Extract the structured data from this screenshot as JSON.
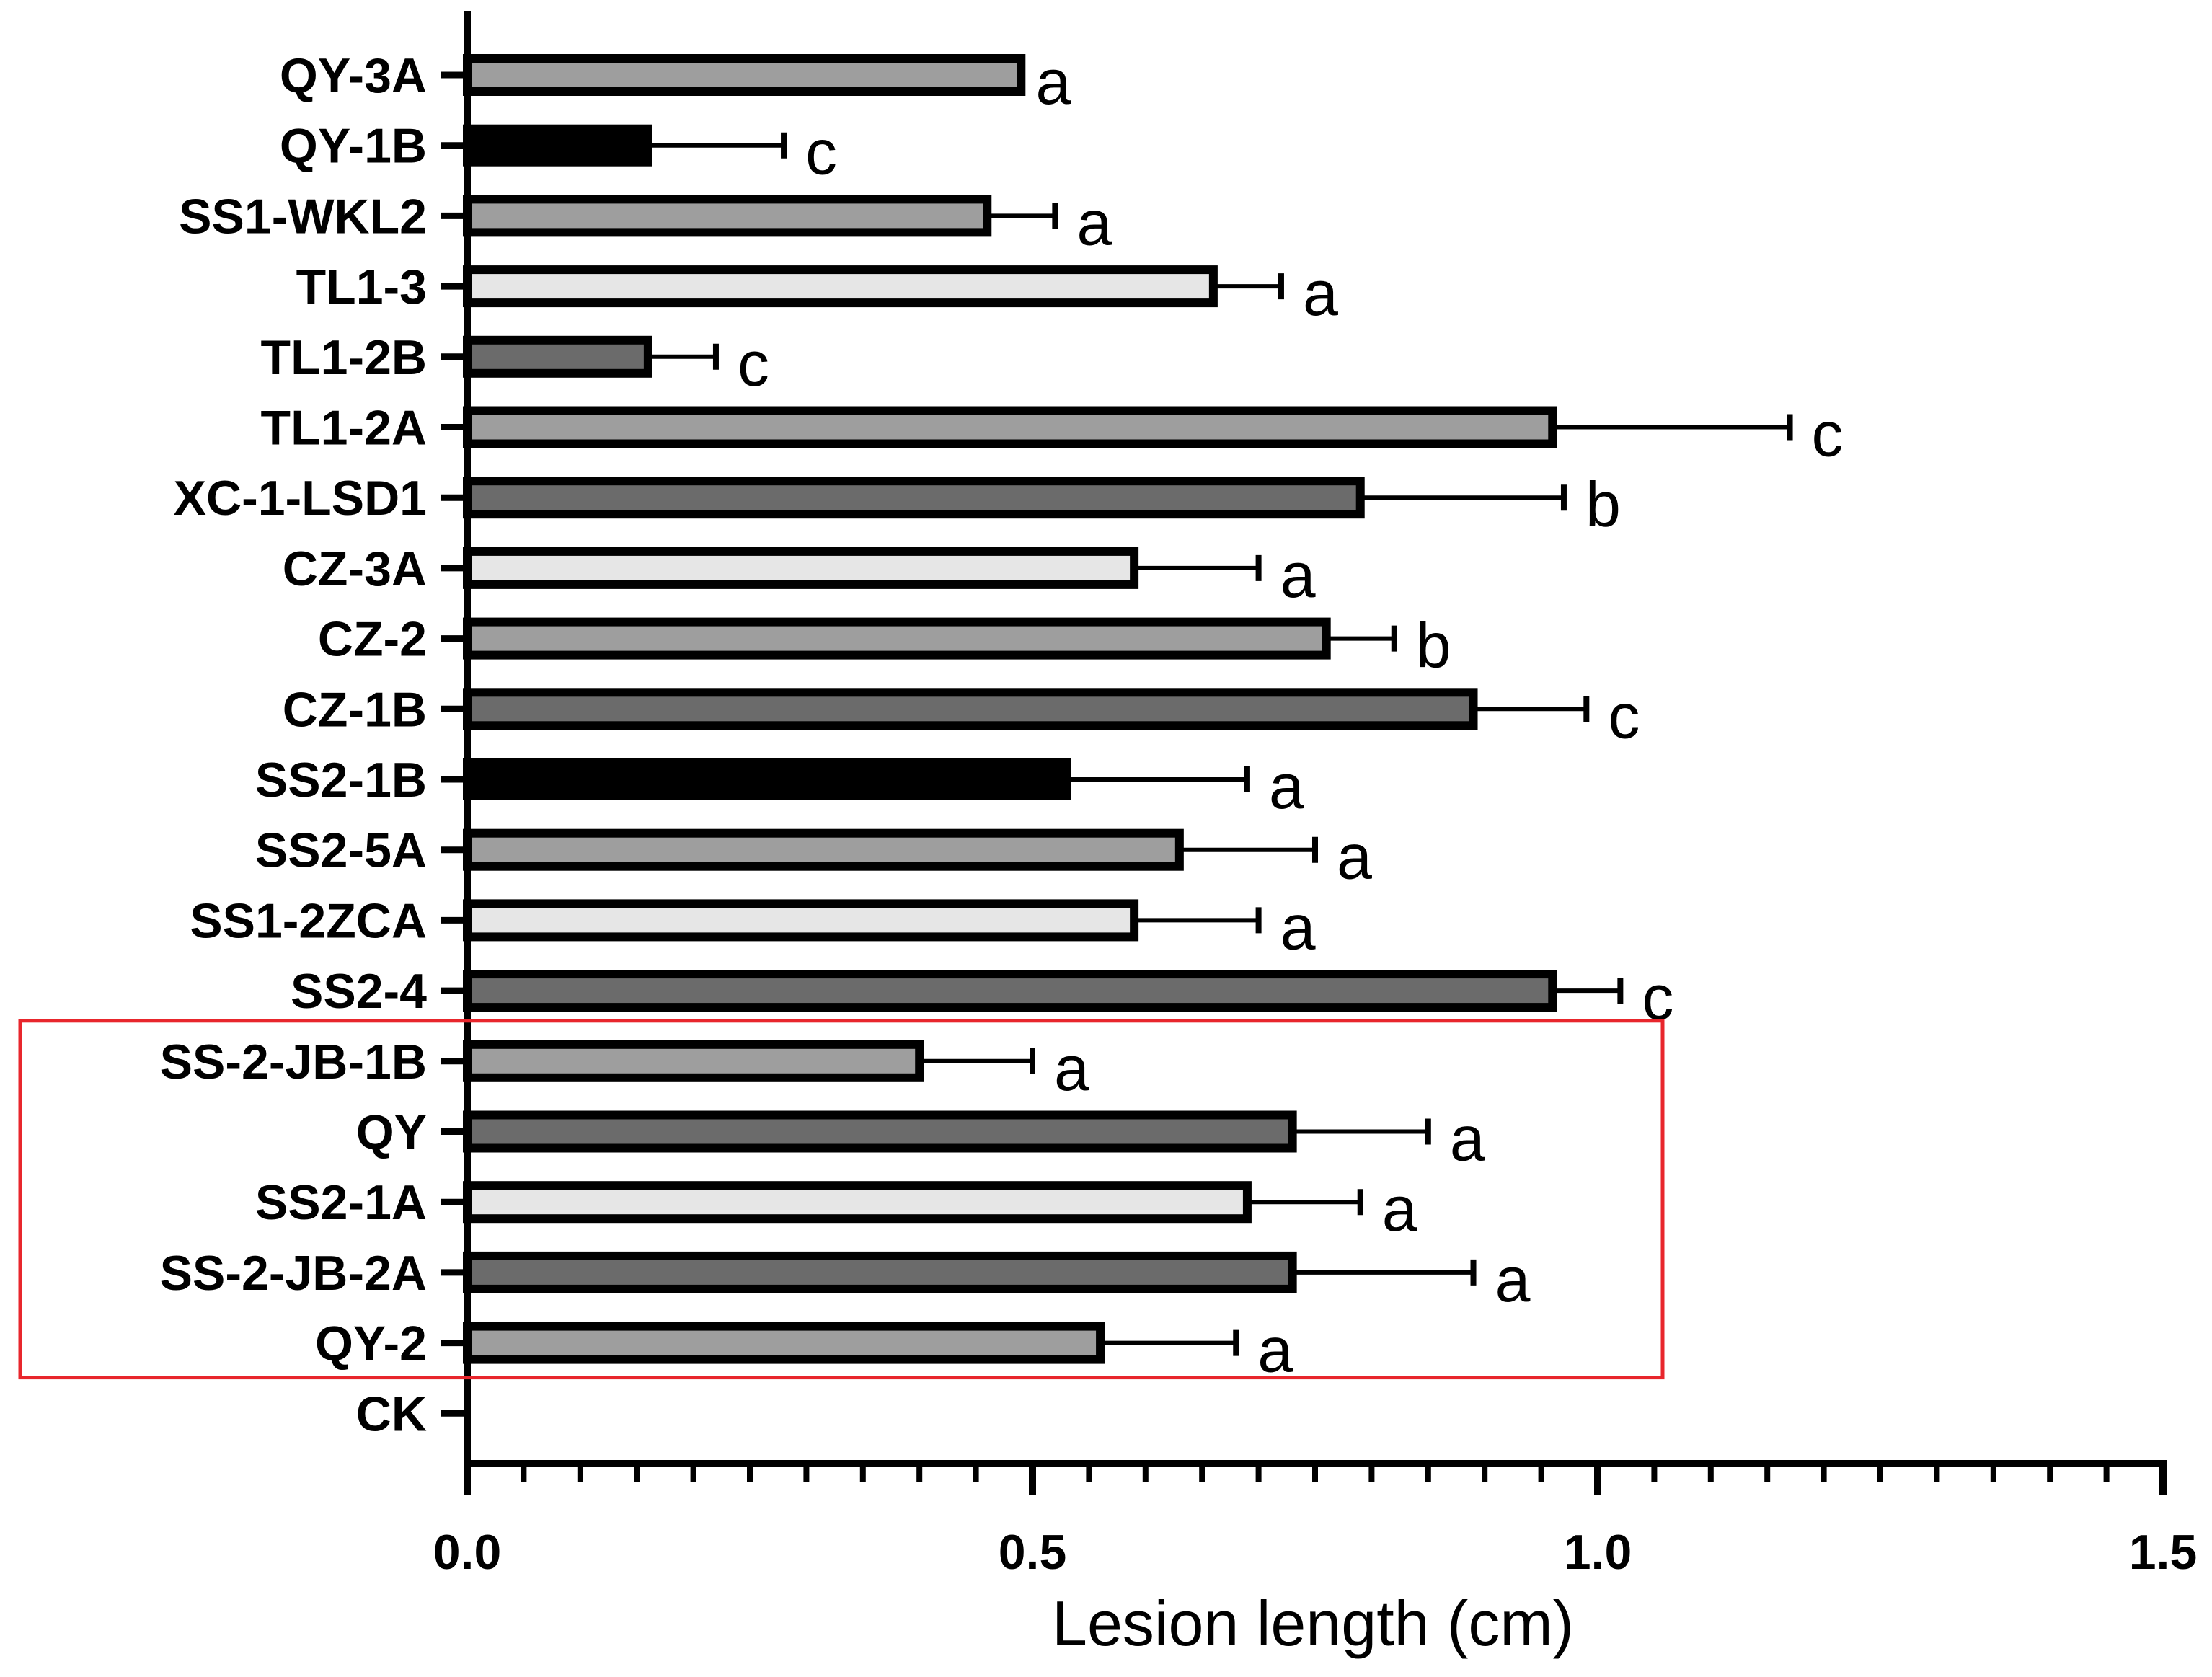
{
  "chart_data": {
    "type": "bar",
    "orientation": "horizontal",
    "title": "",
    "xlabel": "Lesion length (cm)",
    "ylabel": "",
    "xlim": [
      0,
      1.5
    ],
    "xticks": [
      0.0,
      0.5,
      1.0,
      1.5
    ],
    "xtick_labels": [
      "0.0",
      "0.5",
      "1.0",
      "1.5"
    ],
    "minor_tick_step": 0.05,
    "grid": false,
    "highlight_box": {
      "color": "#e8262c",
      "categories": [
        "SS-2-JB-1B",
        "QY",
        "SS2-1A",
        "SS-2-JB-2A",
        "QY-2"
      ]
    },
    "bars": [
      {
        "category": "QY-3A",
        "value": 0.49,
        "error": 0.0,
        "sig": "a",
        "color": "#9e9e9e"
      },
      {
        "category": "QY-1B",
        "value": 0.16,
        "error": 0.12,
        "sig": "c",
        "color": "#000000"
      },
      {
        "category": "SS1-WKL2",
        "value": 0.46,
        "error": 0.06,
        "sig": "a",
        "color": "#9e9e9e"
      },
      {
        "category": "TL1-3",
        "value": 0.66,
        "error": 0.06,
        "sig": "a",
        "color": "#e6e6e6"
      },
      {
        "category": "TL1-2B",
        "value": 0.16,
        "error": 0.06,
        "sig": "c",
        "color": "#6b6b6b"
      },
      {
        "category": "TL1-2A",
        "value": 0.96,
        "error": 0.21,
        "sig": "c",
        "color": "#9e9e9e"
      },
      {
        "category": "XC-1-LSD1",
        "value": 0.79,
        "error": 0.18,
        "sig": "b",
        "color": "#6b6b6b"
      },
      {
        "category": "CZ-3A",
        "value": 0.59,
        "error": 0.11,
        "sig": "a",
        "color": "#e6e6e6"
      },
      {
        "category": "CZ-2",
        "value": 0.76,
        "error": 0.06,
        "sig": "b",
        "color": "#9e9e9e"
      },
      {
        "category": "CZ-1B",
        "value": 0.89,
        "error": 0.1,
        "sig": "c",
        "color": "#6b6b6b"
      },
      {
        "category": "SS2-1B",
        "value": 0.53,
        "error": 0.16,
        "sig": "a",
        "color": "#000000"
      },
      {
        "category": "SS2-5A",
        "value": 0.63,
        "error": 0.12,
        "sig": "a",
        "color": "#9e9e9e"
      },
      {
        "category": "SS1-2ZCA",
        "value": 0.59,
        "error": 0.11,
        "sig": "a",
        "color": "#e6e6e6"
      },
      {
        "category": "SS2-4",
        "value": 0.96,
        "error": 0.06,
        "sig": "c",
        "color": "#6b6b6b"
      },
      {
        "category": "SS-2-JB-1B",
        "value": 0.4,
        "error": 0.1,
        "sig": "a",
        "color": "#9e9e9e"
      },
      {
        "category": "QY",
        "value": 0.73,
        "error": 0.12,
        "sig": "a",
        "color": "#6b6b6b"
      },
      {
        "category": "SS2-1A",
        "value": 0.69,
        "error": 0.1,
        "sig": "a",
        "color": "#e6e6e6"
      },
      {
        "category": "SS-2-JB-2A",
        "value": 0.73,
        "error": 0.16,
        "sig": "a",
        "color": "#6b6b6b"
      },
      {
        "category": "QY-2",
        "value": 0.56,
        "error": 0.12,
        "sig": "a",
        "color": "#9e9e9e"
      },
      {
        "category": "CK",
        "value": 0.0,
        "error": 0.0,
        "sig": "",
        "color": "#9e9e9e"
      }
    ]
  }
}
